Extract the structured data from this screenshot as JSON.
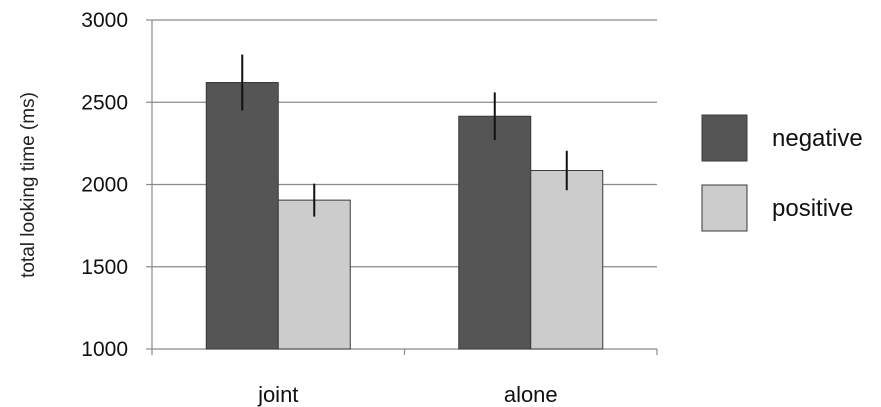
{
  "chart_data": {
    "type": "bar",
    "title": "",
    "xlabel": "",
    "ylabel": "total looking time (ms)",
    "categories": [
      "joint",
      "alone"
    ],
    "series": [
      {
        "name": "negative",
        "color": "#555555",
        "values": [
          2620,
          2415
        ],
        "error": [
          170,
          145
        ]
      },
      {
        "name": "positive",
        "color": "#cccccc",
        "values": [
          1905,
          2085
        ],
        "error": [
          100,
          120
        ]
      }
    ],
    "ylim": [
      1000,
      3000
    ],
    "yticks": [
      1000,
      1500,
      2000,
      2500,
      3000
    ],
    "grid": true,
    "legend_position": "right"
  }
}
